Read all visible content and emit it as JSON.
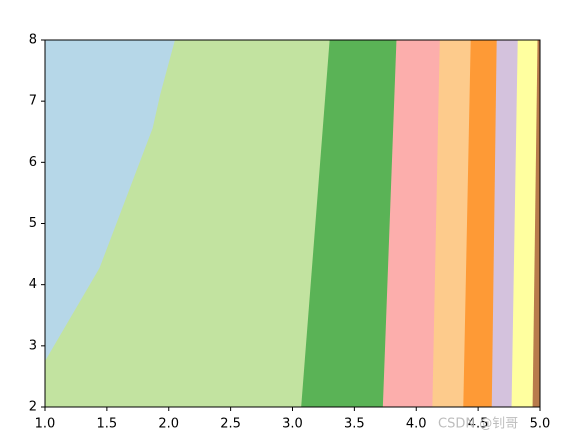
{
  "chart_data": {
    "type": "contourf",
    "xlim": [
      1.0,
      5.0
    ],
    "ylim": [
      2,
      8
    ],
    "xticks": [
      {
        "value": 1.0,
        "label": "1.0"
      },
      1.5,
      {
        "value": 2.0,
        "label": "2.0"
      },
      2.5,
      {
        "value": 3.0,
        "label": "3.0"
      },
      3.5,
      {
        "value": 4.0,
        "label": "4.0"
      },
      4.5,
      {
        "value": 5.0,
        "label": "5.0"
      }
    ],
    "yticks": [
      2,
      3,
      4,
      5,
      6,
      7,
      8
    ],
    "boundaries": [
      {
        "x": [
          1.0,
          1.44,
          1.87,
          1.93,
          2.05
        ],
        "y": [
          2.75,
          4.27,
          6.56,
          7.1,
          8
        ]
      },
      {
        "x": [
          3.07,
          3.3
        ],
        "y": [
          2,
          8
        ]
      },
      {
        "x": [
          3.73,
          3.84
        ],
        "y": [
          2,
          8
        ]
      },
      {
        "x": [
          4.13,
          4.19
        ],
        "y": [
          2,
          8
        ]
      },
      {
        "x": [
          4.38,
          4.44
        ],
        "y": [
          2,
          8
        ]
      },
      {
        "x": [
          4.61,
          4.65
        ],
        "y": [
          2,
          8
        ]
      },
      {
        "x": [
          4.77,
          4.82
        ],
        "y": [
          2,
          8
        ]
      },
      {
        "x": [
          4.94,
          4.98
        ],
        "y": [
          2,
          8
        ]
      }
    ],
    "colors": [
      "#b6d7e8",
      "#c2e3a0",
      "#5ab356",
      "#fcaeac",
      "#fdcb8c",
      "#fe9a36",
      "#d4c2dd",
      "#ffff9f",
      "#b87b4c"
    ],
    "watermark": "CSDN @钊哥"
  }
}
